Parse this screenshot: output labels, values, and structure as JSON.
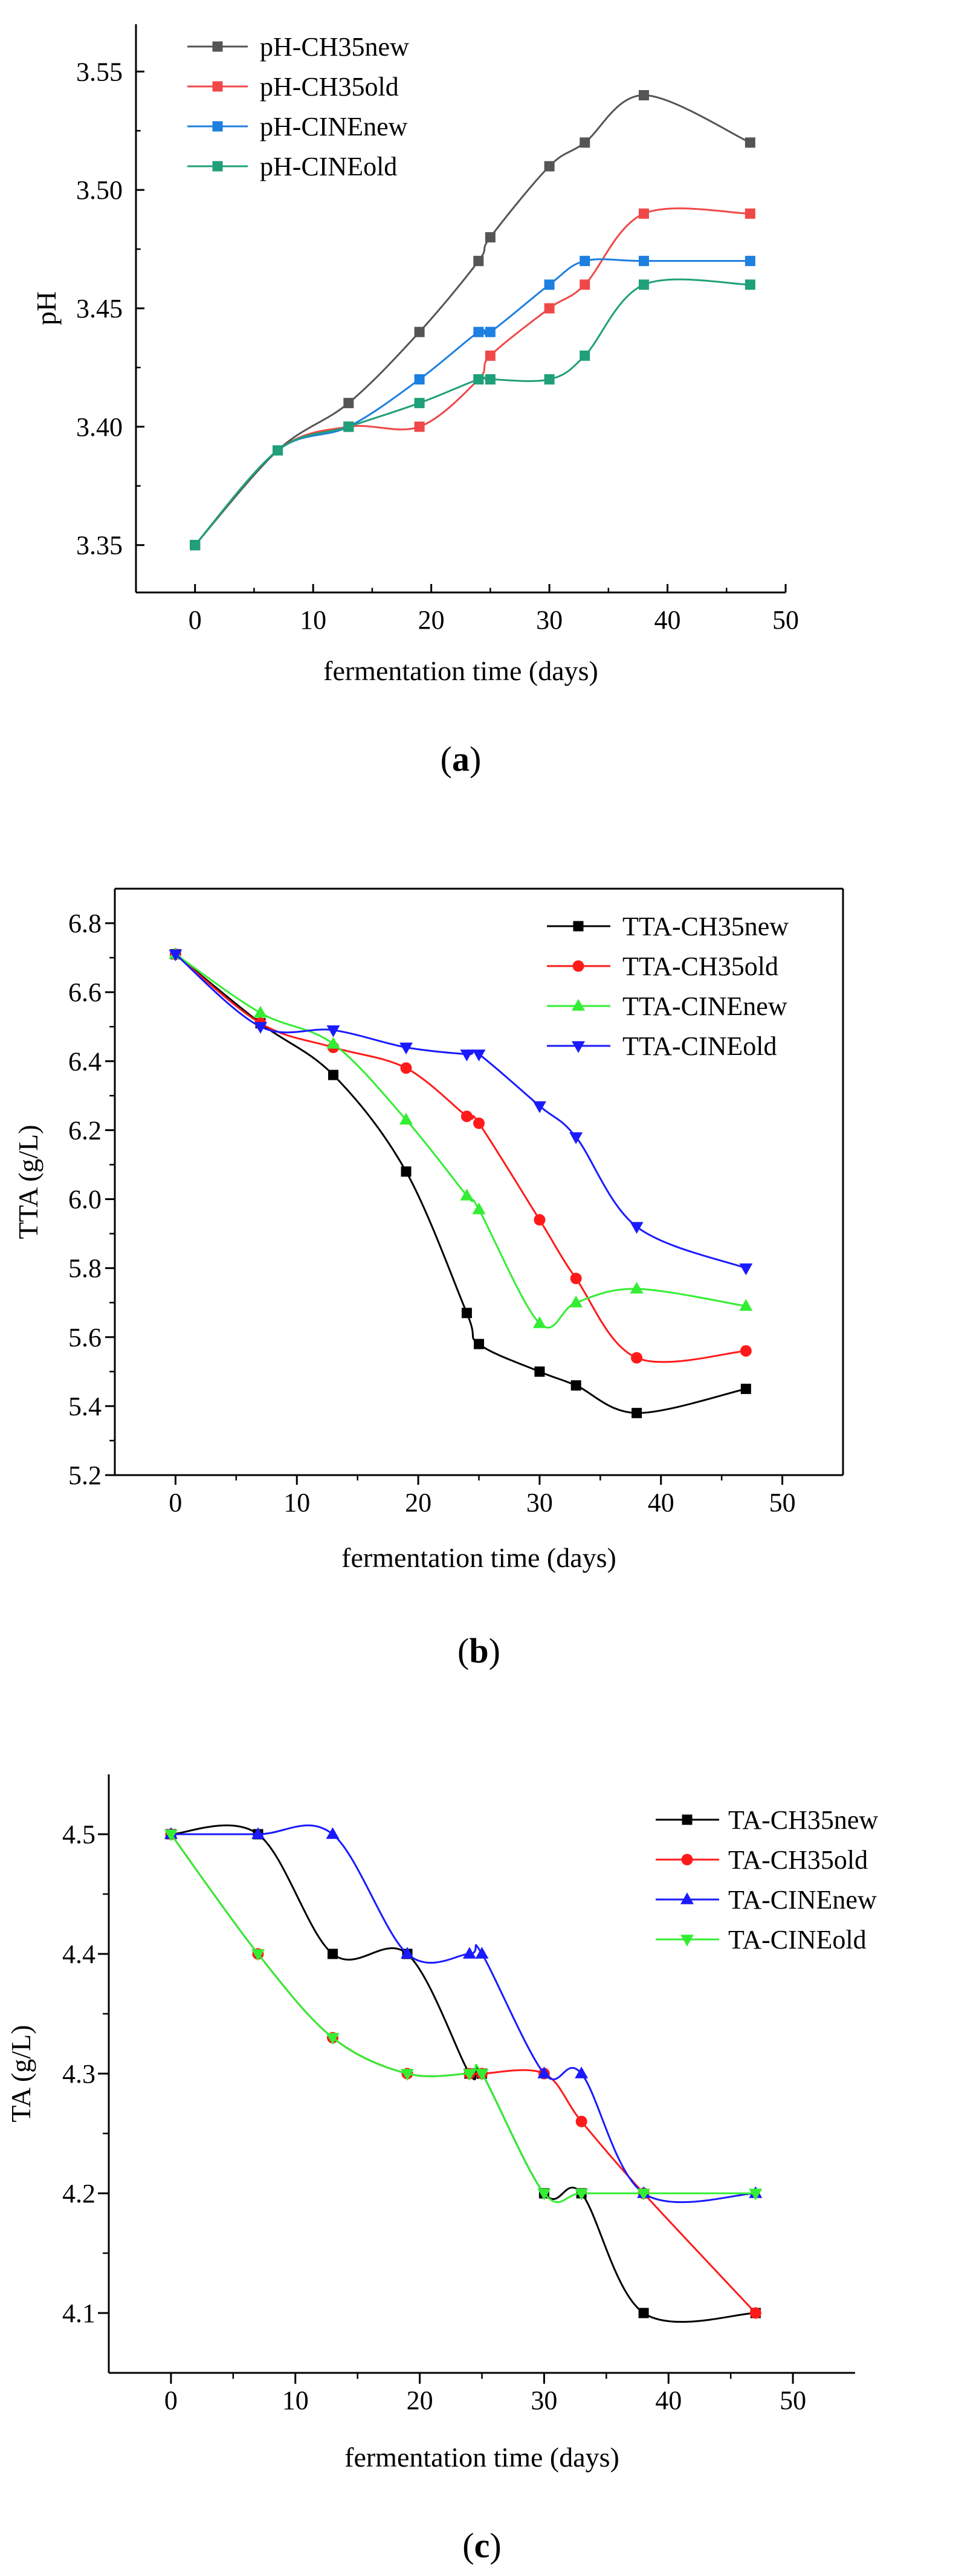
{
  "chart_data": [
    {
      "type": "line",
      "panel_label": "a",
      "xlabel": "fermentation time (days)",
      "ylabel": "pH",
      "xlim": [
        -5,
        50
      ],
      "ylim": [
        3.33,
        3.57
      ],
      "xticks": [
        0,
        10,
        20,
        30,
        40,
        50
      ],
      "yticks": [
        3.35,
        3.4,
        3.45,
        3.5,
        3.55
      ],
      "ytick_decimals": 2,
      "x": [
        0,
        7,
        13,
        19,
        24,
        25,
        30,
        33,
        38,
        47
      ],
      "series": [
        {
          "name": "pH-CH35new",
          "color": "#555555",
          "marker": "square",
          "values": [
            3.35,
            3.39,
            3.41,
            3.44,
            3.47,
            3.48,
            3.51,
            3.52,
            3.54,
            3.52
          ]
        },
        {
          "name": "pH-CH35old",
          "color": "#f04848",
          "marker": "square",
          "values": [
            3.35,
            3.39,
            3.4,
            3.4,
            3.42,
            3.43,
            3.45,
            3.46,
            3.49,
            3.49
          ]
        },
        {
          "name": "pH-CINEnew",
          "color": "#1d7fe0",
          "marker": "square",
          "values": [
            3.35,
            3.39,
            3.4,
            3.42,
            3.44,
            3.44,
            3.46,
            3.47,
            3.47,
            3.47
          ]
        },
        {
          "name": "pH-CINEold",
          "color": "#1fa078",
          "marker": "square",
          "values": [
            3.35,
            3.39,
            3.4,
            3.41,
            3.42,
            3.42,
            3.42,
            3.43,
            3.46,
            3.46
          ]
        }
      ]
    },
    {
      "type": "line",
      "panel_label": "b",
      "xlabel": "fermentation time (days)",
      "ylabel": "TTA (g/L)",
      "xlim": [
        -5,
        55
      ],
      "ylim": [
        5.2,
        6.9
      ],
      "xticks": [
        0,
        10,
        20,
        30,
        40,
        50
      ],
      "yticks": [
        5.2,
        5.4,
        5.6,
        5.8,
        6.0,
        6.2,
        6.4,
        6.6,
        6.8
      ],
      "ytick_decimals": 1,
      "x": [
        0,
        7,
        13,
        19,
        24,
        25,
        30,
        33,
        38,
        47
      ],
      "series": [
        {
          "name": "TTA-CH35new",
          "color": "#000000",
          "marker": "square",
          "values": [
            6.71,
            6.51,
            6.36,
            6.08,
            5.67,
            5.58,
            5.5,
            5.46,
            5.38,
            5.45
          ]
        },
        {
          "name": "TTA-CH35old",
          "color": "#ff1a1a",
          "marker": "circle",
          "values": [
            6.71,
            6.51,
            6.44,
            6.38,
            6.24,
            6.22,
            5.94,
            5.77,
            5.54,
            5.56
          ]
        },
        {
          "name": "TTA-CINEnew",
          "color": "#33ee33",
          "marker": "triangle-up",
          "values": [
            6.71,
            6.54,
            6.45,
            6.23,
            6.01,
            5.97,
            5.64,
            5.7,
            5.74,
            5.69
          ]
        },
        {
          "name": "TTA-CINEold",
          "color": "#1a1aff",
          "marker": "triangle-down",
          "values": [
            6.71,
            6.5,
            6.49,
            6.44,
            6.42,
            6.42,
            6.27,
            6.18,
            5.92,
            5.8
          ]
        }
      ]
    },
    {
      "type": "line",
      "panel_label": "c",
      "xlabel": "fermentation time (days)",
      "ylabel": "TA (g/L)",
      "xlim": [
        -5,
        55
      ],
      "ylim": [
        4.05,
        4.55
      ],
      "xticks": [
        0,
        10,
        20,
        30,
        40,
        50
      ],
      "yticks": [
        4.1,
        4.2,
        4.3,
        4.4,
        4.5
      ],
      "ytick_decimals": 1,
      "x": [
        0,
        7,
        13,
        19,
        24,
        25,
        30,
        33,
        38,
        47
      ],
      "series": [
        {
          "name": "TA-CH35new",
          "color": "#000000",
          "marker": "square",
          "values": [
            4.5,
            4.5,
            4.4,
            4.4,
            4.3,
            4.3,
            4.2,
            4.2,
            4.1,
            4.1
          ]
        },
        {
          "name": "TA-CH35old",
          "color": "#ff1a1a",
          "marker": "circle",
          "values": [
            4.5,
            4.4,
            4.33,
            4.3,
            4.3,
            4.3,
            4.3,
            4.26,
            4.2,
            4.1
          ]
        },
        {
          "name": "TA-CINEnew",
          "color": "#1a1aff",
          "marker": "triangle-up",
          "values": [
            4.5,
            4.5,
            4.5,
            4.4,
            4.4,
            4.4,
            4.3,
            4.3,
            4.2,
            4.2
          ]
        },
        {
          "name": "TA-CINEold",
          "color": "#33ee33",
          "marker": "triangle-down",
          "values": [
            4.5,
            4.4,
            4.33,
            4.3,
            4.3,
            4.3,
            4.2,
            4.2,
            4.2,
            4.2
          ]
        }
      ]
    }
  ]
}
